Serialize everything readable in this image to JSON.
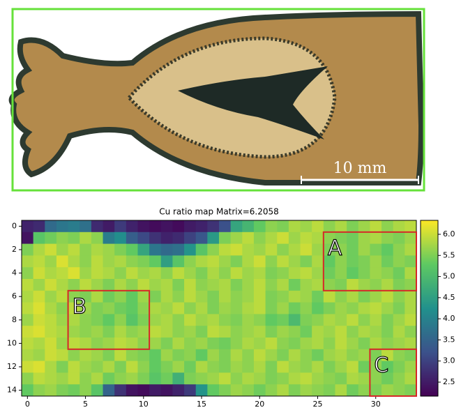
{
  "photo": {
    "scale_label": "10 mm"
  },
  "chart_data": {
    "type": "heatmap",
    "title": "Cu ratio map Matrix=6.2058",
    "colormap": "viridis",
    "xlim": [
      -0.5,
      33.5
    ],
    "ylim": [
      14.5,
      -0.5
    ],
    "xticks": [
      0,
      5,
      10,
      15,
      20,
      25,
      30
    ],
    "yticks": [
      0,
      2,
      4,
      6,
      8,
      10,
      12,
      14
    ],
    "clim": [
      2.17,
      6.33
    ],
    "cticks": [
      2.5,
      {
        "value": 3,
        "label": "3.0"
      },
      3.5,
      {
        "value": 4,
        "label": "4.0"
      },
      4.5,
      {
        "value": 5,
        "label": "5.0"
      },
      5.5,
      {
        "value": 6,
        "label": "6.0"
      }
    ],
    "annotations": [
      {
        "label": "A",
        "x": [
          25.5,
          33.5
        ],
        "y": [
          0.5,
          5.5
        ],
        "color": "#d62728"
      },
      {
        "label": "B",
        "x": [
          3.5,
          10.5
        ],
        "y": [
          5.5,
          10.5
        ],
        "color": "#d62728"
      },
      {
        "label": "C",
        "x": [
          29.5,
          33.5
        ],
        "y": [
          10.5,
          14.5
        ],
        "color": "#d62728"
      }
    ],
    "z": [
      [
        2.6,
        2.7,
        3.6,
        3.8,
        3.9,
        3.7,
        2.7,
        2.5,
        2.9,
        2.6,
        2.4,
        2.3,
        2.4,
        2.3,
        2.5,
        2.6,
        2.8,
        3.2,
        4.6,
        4.9,
        5.3,
        5.6,
        5.5,
        5.8,
        5.7,
        5.9,
        5.6,
        5.8,
        5.5,
        5.7,
        5.9,
        5.6,
        5.8,
        5.9
      ],
      [
        2.4,
        5.2,
        5.4,
        5.6,
        5.5,
        5.8,
        5.6,
        3.9,
        4.2,
        3.4,
        3.1,
        2.8,
        2.6,
        2.7,
        3.0,
        3.3,
        4.4,
        5.5,
        5.7,
        5.9,
        5.6,
        5.8,
        6.0,
        5.7,
        5.9,
        5.8,
        5.6,
        5.5,
        5.4,
        5.7,
        5.8,
        5.6,
        5.5,
        5.7
      ],
      [
        5.5,
        5.8,
        6.0,
        5.7,
        5.9,
        5.6,
        5.8,
        5.7,
        5.5,
        5.3,
        4.6,
        3.8,
        3.6,
        3.7,
        4.3,
        5.2,
        5.6,
        5.9,
        6.0,
        5.8,
        5.7,
        5.9,
        5.6,
        5.8,
        6.0,
        5.7,
        5.5,
        5.6,
        5.4,
        5.7,
        5.5,
        5.3,
        5.6,
        5.8
      ],
      [
        5.8,
        5.9,
        5.7,
        6.1,
        5.8,
        5.6,
        5.9,
        5.7,
        5.8,
        5.6,
        5.5,
        5.3,
        4.5,
        5.2,
        5.6,
        5.8,
        5.9,
        5.7,
        5.5,
        5.8,
        6.0,
        5.6,
        5.9,
        5.7,
        5.5,
        5.8,
        5.3,
        5.6,
        5.4,
        5.5,
        5.7,
        5.4,
        5.6,
        5.5
      ],
      [
        5.6,
        6.0,
        5.8,
        5.9,
        6.1,
        5.7,
        5.9,
        5.8,
        5.6,
        5.9,
        5.7,
        5.8,
        5.6,
        5.9,
        5.7,
        5.5,
        5.8,
        5.6,
        5.9,
        5.7,
        5.8,
        5.5,
        5.6,
        5.8,
        5.9,
        5.7,
        5.4,
        5.6,
        5.3,
        5.5,
        5.7,
        5.6,
        5.4,
        5.8
      ],
      [
        5.9,
        5.7,
        6.0,
        5.8,
        5.6,
        5.9,
        5.7,
        5.5,
        5.8,
        5.6,
        5.9,
        5.7,
        5.8,
        5.5,
        5.9,
        5.6,
        5.7,
        5.8,
        5.5,
        5.7,
        5.9,
        5.6,
        5.8,
        5.4,
        5.7,
        5.8,
        5.6,
        5.5,
        5.9,
        5.7,
        5.6,
        5.8,
        5.5,
        5.6
      ],
      [
        5.8,
        6.0,
        5.7,
        5.9,
        5.6,
        5.5,
        5.8,
        5.4,
        5.6,
        5.3,
        5.7,
        5.5,
        5.8,
        5.6,
        5.9,
        5.7,
        5.5,
        5.8,
        5.6,
        5.7,
        5.9,
        5.5,
        5.6,
        5.8,
        5.7,
        5.4,
        5.9,
        5.6,
        5.8,
        5.5,
        5.7,
        5.9,
        5.6,
        5.8
      ],
      [
        5.9,
        6.1,
        5.8,
        5.6,
        5.9,
        5.7,
        5.5,
        5.6,
        5.4,
        5.3,
        5.6,
        5.8,
        5.7,
        5.9,
        5.6,
        5.8,
        5.5,
        5.7,
        5.6,
        5.8,
        5.9,
        5.5,
        5.7,
        5.4,
        5.6,
        5.3,
        5.5,
        5.7,
        5.6,
        5.8,
        5.9,
        5.7,
        5.5,
        5.8
      ],
      [
        5.7,
        6.0,
        5.9,
        5.7,
        5.8,
        5.6,
        5.5,
        5.3,
        5.6,
        5.2,
        5.5,
        5.7,
        5.8,
        5.6,
        5.9,
        5.7,
        5.8,
        5.6,
        5.5,
        5.7,
        5.6,
        5.3,
        5.4,
        5.0,
        5.5,
        5.6,
        5.8,
        5.7,
        5.9,
        5.6,
        5.8,
        5.5,
        5.7,
        5.9
      ],
      [
        6.0,
        6.1,
        5.9,
        5.8,
        5.7,
        5.6,
        5.7,
        5.5,
        5.8,
        5.6,
        5.7,
        5.9,
        5.8,
        5.6,
        5.7,
        5.5,
        5.9,
        5.8,
        5.6,
        5.7,
        5.8,
        5.5,
        5.7,
        5.6,
        5.4,
        5.8,
        5.7,
        5.9,
        5.6,
        5.8,
        5.7,
        5.5,
        5.8,
        5.6
      ],
      [
        5.9,
        5.8,
        6.0,
        5.7,
        5.9,
        5.8,
        5.6,
        5.7,
        5.9,
        5.8,
        5.6,
        5.7,
        5.5,
        5.8,
        5.6,
        5.7,
        5.5,
        5.4,
        5.6,
        5.8,
        5.7,
        5.9,
        5.6,
        5.5,
        5.7,
        5.8,
        5.6,
        5.9,
        5.7,
        5.5,
        5.8,
        5.6,
        5.7,
        5.8
      ],
      [
        5.8,
        5.7,
        6.0,
        5.9,
        5.6,
        5.8,
        5.7,
        5.5,
        5.9,
        5.6,
        5.5,
        5.3,
        5.7,
        5.5,
        5.6,
        5.3,
        5.7,
        5.5,
        5.8,
        5.6,
        5.9,
        5.7,
        5.5,
        5.8,
        5.6,
        5.4,
        5.7,
        5.8,
        5.6,
        5.7,
        5.5,
        5.9,
        5.6,
        5.5
      ],
      [
        6.0,
        6.1,
        5.8,
        5.5,
        5.9,
        5.7,
        5.6,
        5.8,
        5.5,
        5.9,
        5.6,
        5.3,
        5.5,
        5.7,
        5.4,
        5.8,
        5.6,
        5.5,
        5.7,
        5.6,
        5.8,
        5.5,
        5.9,
        5.7,
        5.6,
        5.8,
        5.5,
        5.7,
        5.9,
        5.4,
        5.6,
        5.3,
        5.5,
        5.7
      ],
      [
        5.6,
        5.9,
        5.8,
        5.7,
        5.9,
        5.6,
        5.8,
        5.4,
        5.6,
        5.7,
        5.5,
        5.2,
        5.4,
        4.8,
        5.5,
        5.6,
        5.7,
        5.9,
        5.6,
        5.8,
        5.7,
        5.5,
        5.6,
        5.8,
        5.9,
        5.7,
        5.6,
        5.5,
        5.8,
        5.7,
        5.6,
        5.4,
        5.6,
        5.8
      ],
      [
        5.3,
        5.6,
        5.7,
        5.5,
        5.4,
        5.6,
        5.2,
        3.5,
        2.8,
        2.4,
        2.3,
        2.5,
        2.4,
        2.6,
        2.9,
        4.3,
        5.3,
        5.5,
        5.7,
        5.6,
        5.4,
        5.6,
        5.8,
        5.5,
        5.7,
        5.6,
        5.5,
        5.8,
        5.4,
        5.6,
        5.5,
        5.7,
        5.6,
        5.5
      ]
    ]
  }
}
